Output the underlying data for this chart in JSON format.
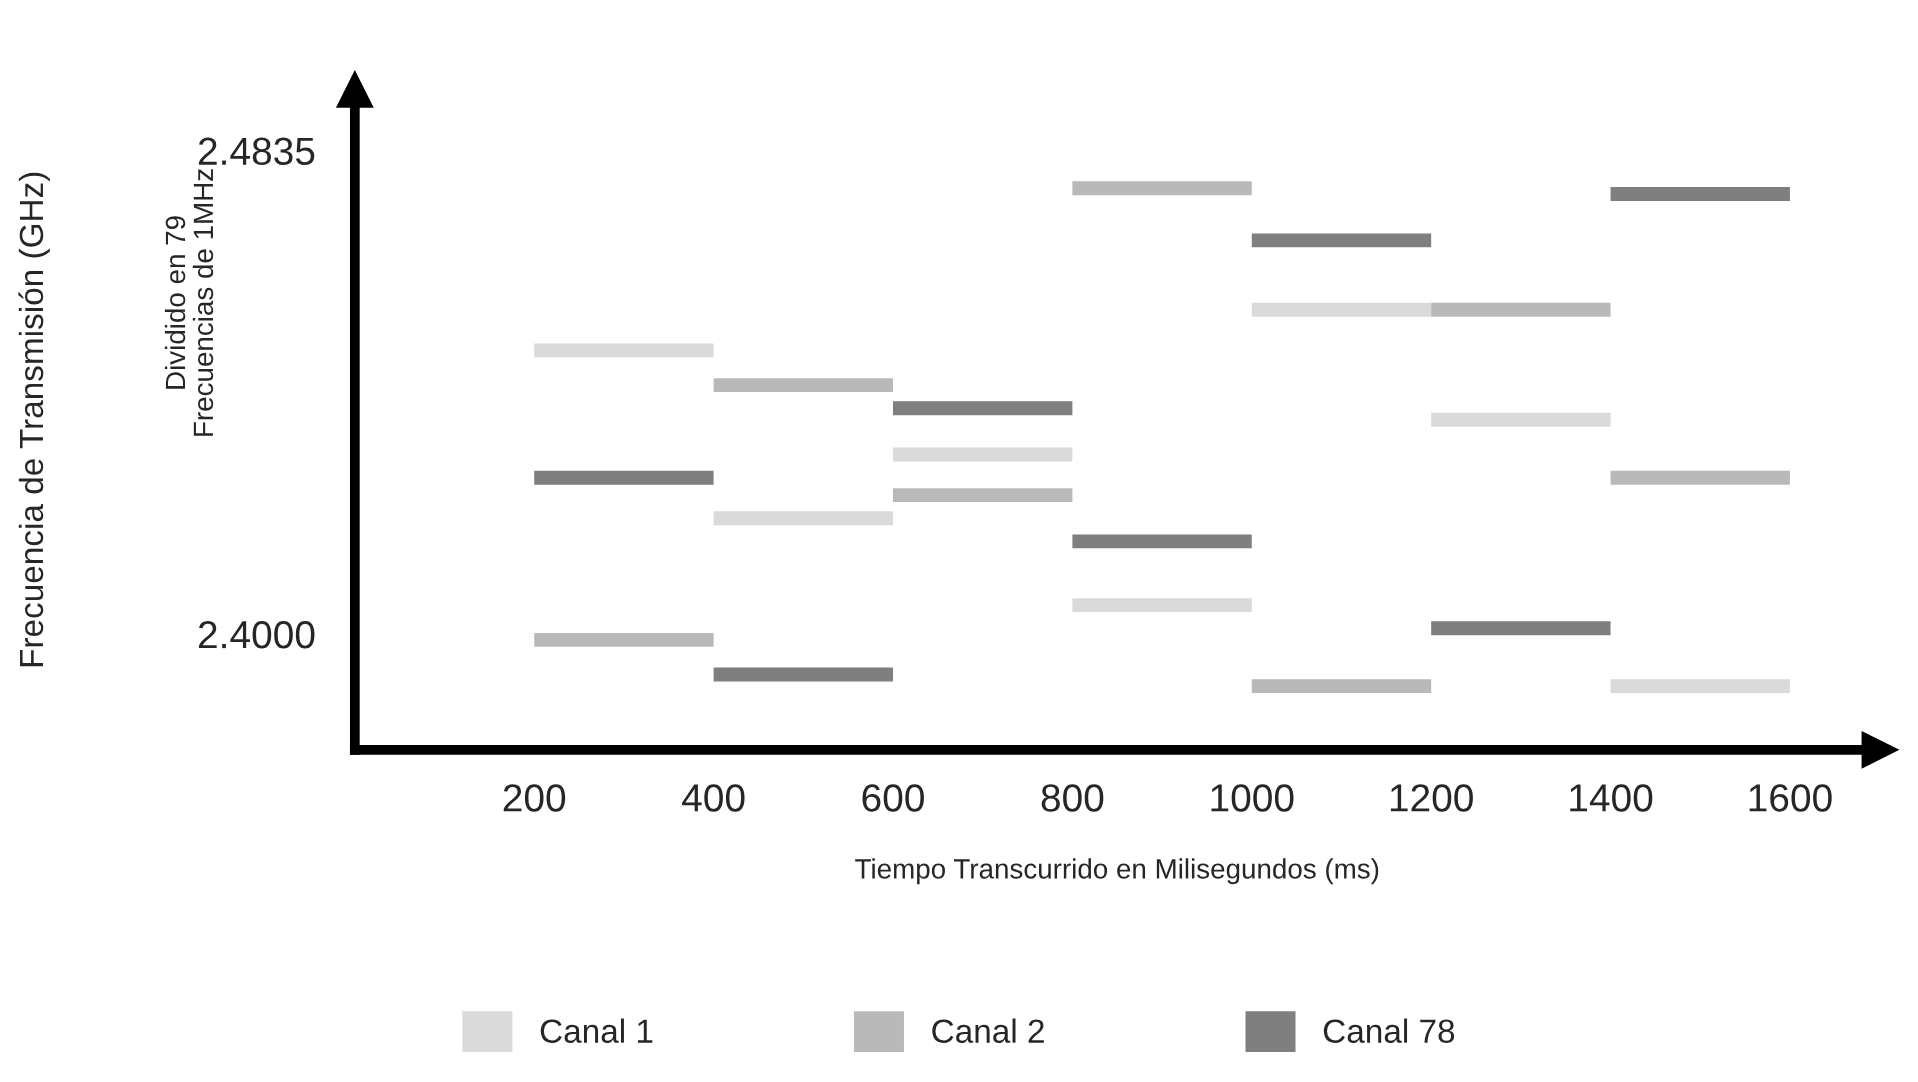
{
  "chart_data": {
    "type": "line",
    "xlabel": "Tiempo Transcurrido en Milisegundos (ms)",
    "ylabel": "Frecuencia de Transmisión (GHz)",
    "annotations": [
      "Dividido en 79\nFrecuencias de 1MHz"
    ],
    "xlim": [
      0,
      1700
    ],
    "ylim": [
      2.38,
      2.494
    ],
    "xticks": [
      200,
      400,
      600,
      800,
      1000,
      1200,
      1400,
      1600
    ],
    "yticks": [
      {
        "value": 2.4,
        "label": "2.4000"
      },
      {
        "value": 2.4835,
        "label": "2.4835"
      }
    ],
    "grid": false,
    "legend": "bottom",
    "marker": "none",
    "line_style": "solid",
    "series": [
      {
        "name": "Canal 1",
        "color": "#dadada",
        "x": [
          200,
          400,
          null,
          400,
          600,
          null,
          600,
          800,
          null,
          800,
          1000,
          null,
          1000,
          1200,
          null,
          1200,
          1400,
          null,
          1400,
          1600
        ],
        "values": [
          2.449,
          2.449,
          null,
          2.42,
          2.42,
          null,
          2.431,
          2.431,
          null,
          2.405,
          2.405,
          null,
          2.456,
          2.456,
          null,
          2.437,
          2.437,
          null,
          2.391,
          2.391
        ]
      },
      {
        "name": "Canal 2",
        "color": "#b9b9b9",
        "x": [
          200,
          400,
          null,
          400,
          600,
          null,
          600,
          800,
          null,
          800,
          1000,
          null,
          1000,
          1200,
          null,
          1200,
          1400,
          null,
          1400,
          1600
        ],
        "values": [
          2.399,
          2.399,
          null,
          2.443,
          2.443,
          null,
          2.424,
          2.424,
          null,
          2.477,
          2.477,
          null,
          2.391,
          2.391,
          null,
          2.456,
          2.456,
          null,
          2.427,
          2.427
        ]
      },
      {
        "name": "Canal 78",
        "color": "#7f7f7f",
        "x": [
          200,
          400,
          null,
          400,
          600,
          null,
          600,
          800,
          null,
          800,
          1000,
          null,
          1000,
          1200,
          null,
          1200,
          1400,
          null,
          1400,
          1600
        ],
        "values": [
          2.427,
          2.427,
          null,
          2.393,
          2.393,
          null,
          2.439,
          2.439,
          null,
          2.416,
          2.416,
          null,
          2.468,
          2.468,
          null,
          2.401,
          2.401,
          null,
          2.476,
          2.476
        ]
      }
    ]
  }
}
